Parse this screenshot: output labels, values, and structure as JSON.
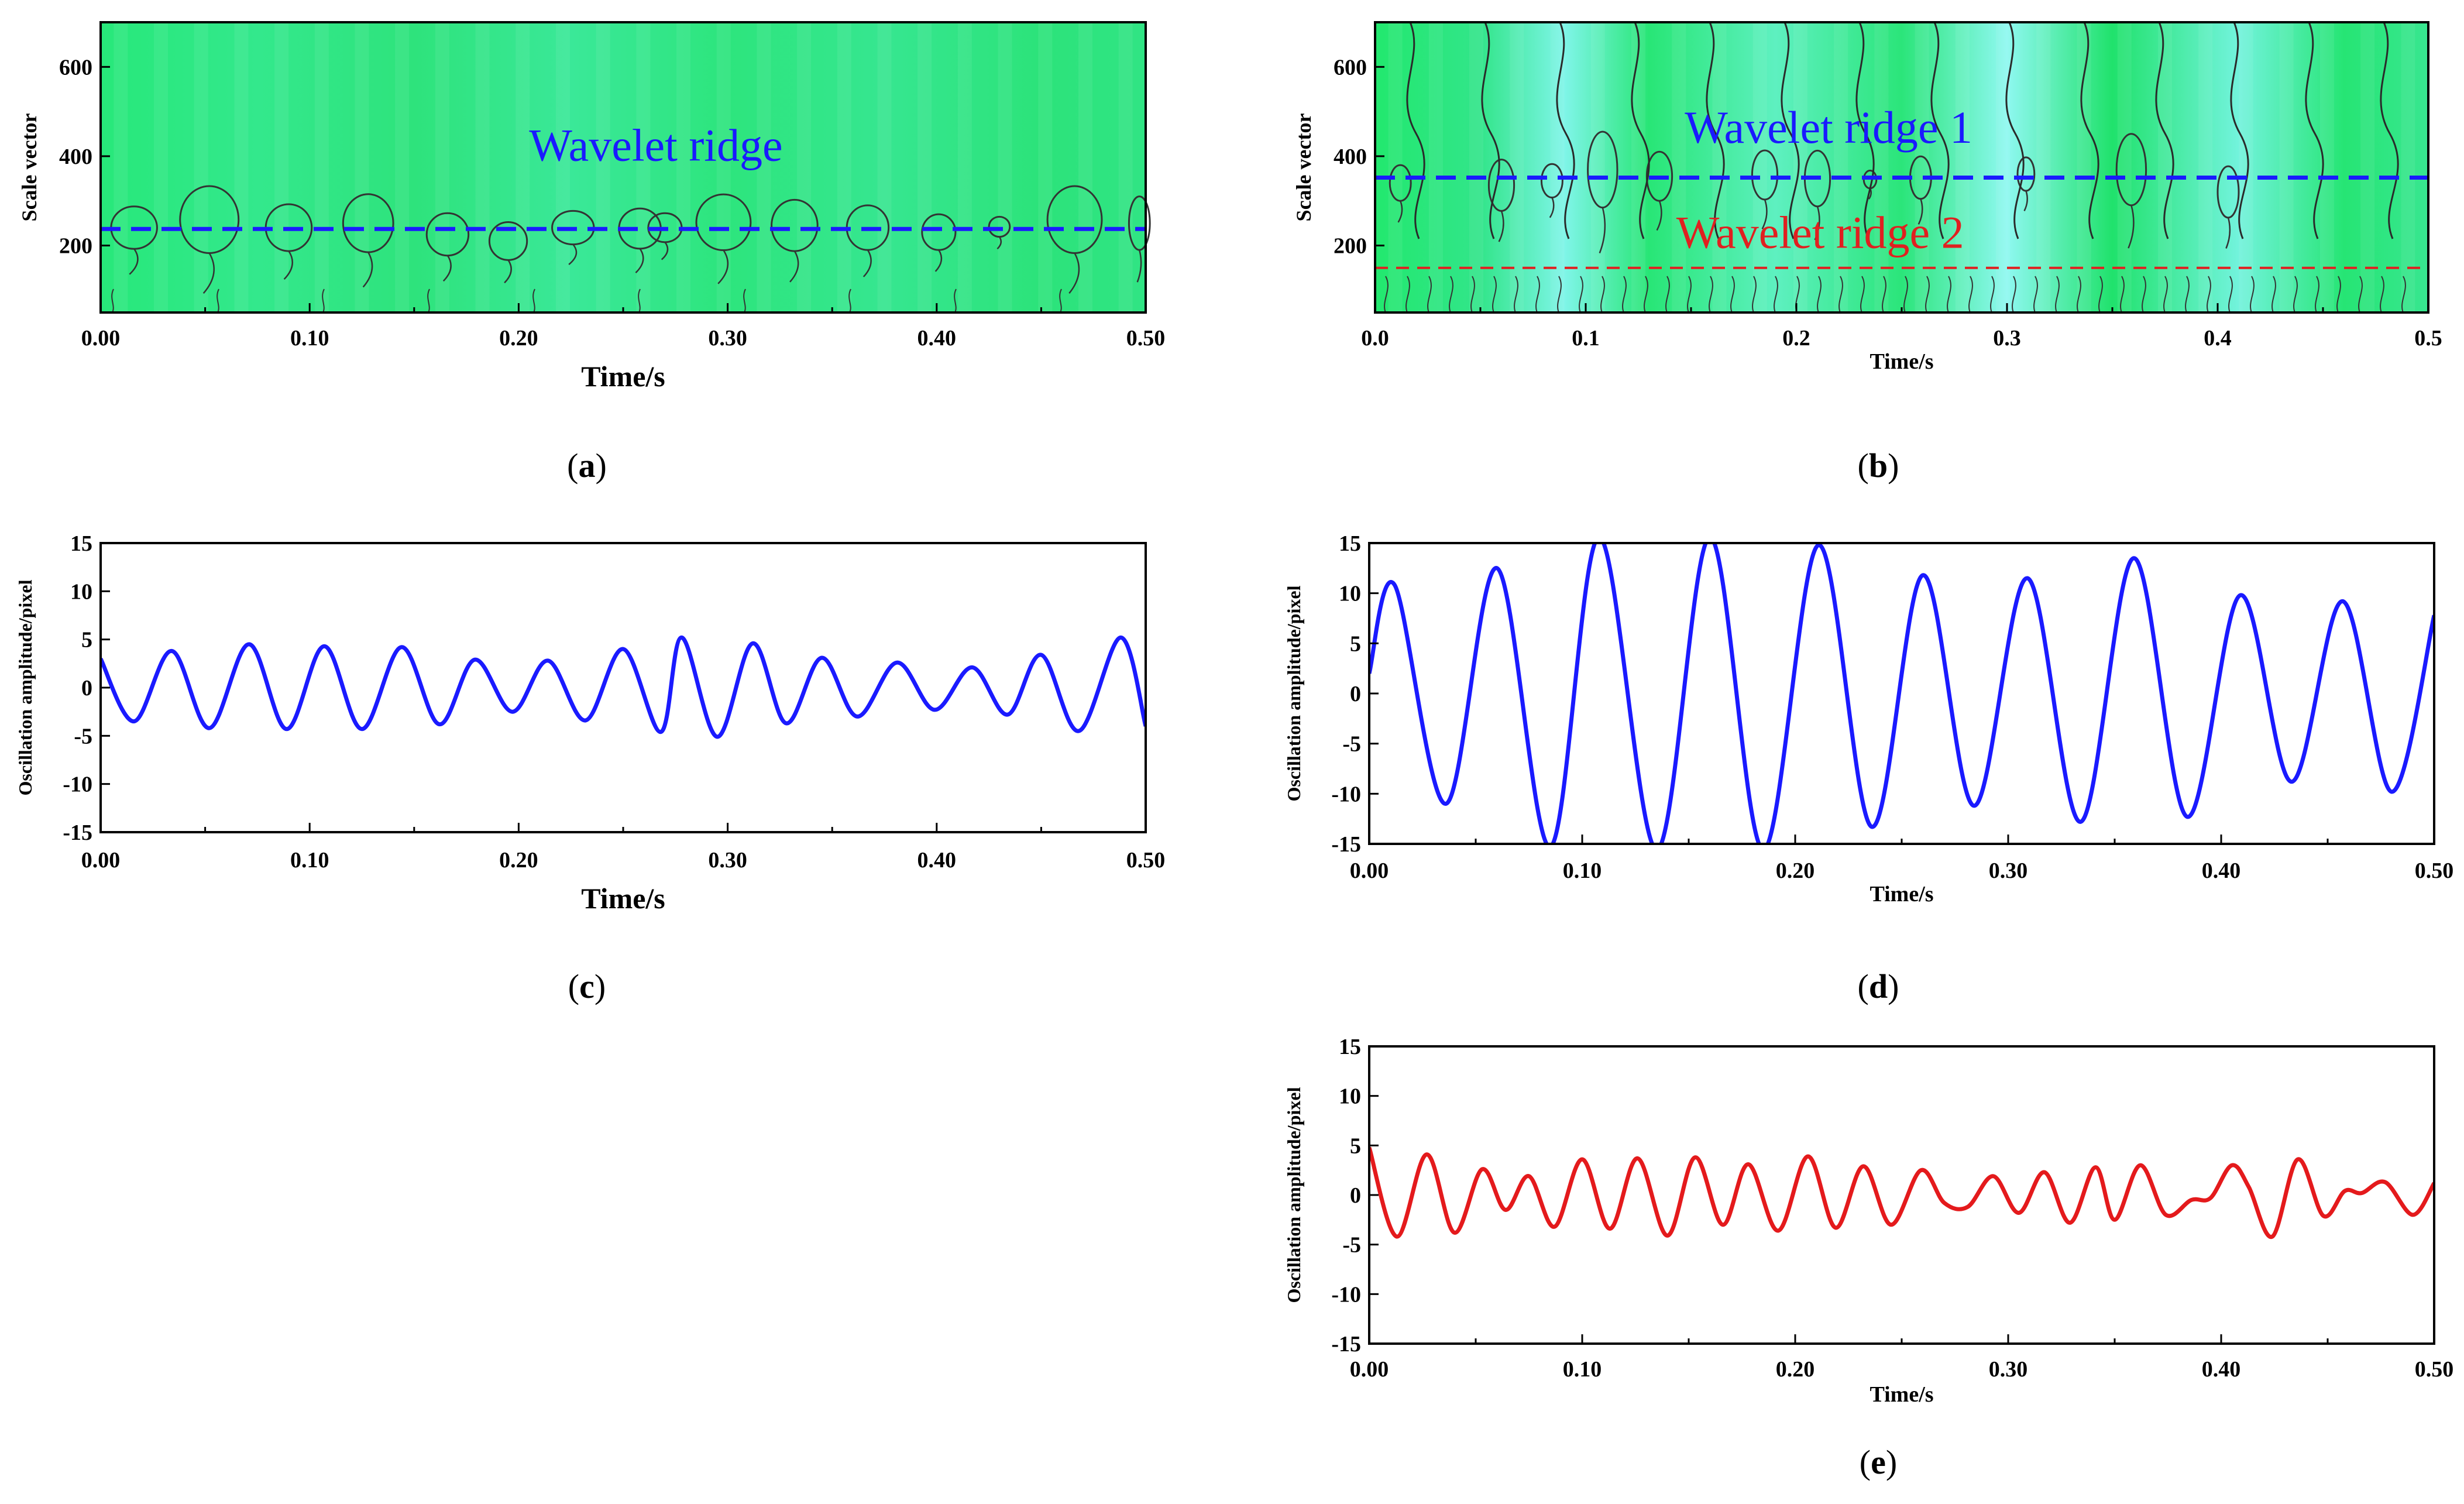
{
  "figure": {
    "background": "#ffffff"
  },
  "chart_data": [
    {
      "id": "a",
      "type": "heatmap",
      "panel_label": "a",
      "xlabel": "Time/s",
      "ylabel": "Scale vector",
      "xlim": [
        0.0,
        0.5
      ],
      "ylim": [
        50,
        700
      ],
      "xticks": [
        "0.00",
        "0.10",
        "0.20",
        "0.30",
        "0.40",
        "0.50"
      ],
      "yticks": [
        "200",
        "400",
        "600"
      ],
      "colormap": "green-cyan",
      "ridges": [
        {
          "name": "Wavelet ridge",
          "scale": 237,
          "color": "#1a1aff",
          "dash": "dashed"
        }
      ],
      "annotations": [
        {
          "text": "Wavelet ridge",
          "x": 0.205,
          "y": 390,
          "color": "#1a1aff"
        }
      ],
      "contours": [
        {
          "x": 0.016,
          "y": 240,
          "w": 0.011,
          "h": 95
        },
        {
          "x": 0.052,
          "y": 258,
          "w": 0.014,
          "h": 150
        },
        {
          "x": 0.09,
          "y": 240,
          "w": 0.011,
          "h": 105
        },
        {
          "x": 0.128,
          "y": 250,
          "w": 0.012,
          "h": 130
        },
        {
          "x": 0.166,
          "y": 225,
          "w": 0.01,
          "h": 95
        },
        {
          "x": 0.195,
          "y": 210,
          "w": 0.009,
          "h": 85
        },
        {
          "x": 0.226,
          "y": 240,
          "w": 0.01,
          "h": 75
        },
        {
          "x": 0.258,
          "y": 238,
          "w": 0.01,
          "h": 90
        },
        {
          "x": 0.27,
          "y": 240,
          "w": 0.008,
          "h": 65
        },
        {
          "x": 0.298,
          "y": 252,
          "w": 0.013,
          "h": 125
        },
        {
          "x": 0.332,
          "y": 245,
          "w": 0.011,
          "h": 115
        },
        {
          "x": 0.367,
          "y": 240,
          "w": 0.01,
          "h": 100
        },
        {
          "x": 0.401,
          "y": 230,
          "w": 0.008,
          "h": 80
        },
        {
          "x": 0.43,
          "y": 242,
          "w": 0.005,
          "h": 45
        },
        {
          "x": 0.466,
          "y": 258,
          "w": 0.013,
          "h": 150
        },
        {
          "x": 0.497,
          "y": 250,
          "w": 0.005,
          "h": 120
        }
      ]
    },
    {
      "id": "b",
      "type": "heatmap",
      "panel_label": "b",
      "xlabel": "Time/s",
      "ylabel": "Scale vector",
      "xlim": [
        0.0,
        0.5
      ],
      "ylim": [
        50,
        700
      ],
      "xticks": [
        "0.0",
        "0.1",
        "0.2",
        "0.3",
        "0.4",
        "0.5"
      ],
      "yticks": [
        "200",
        "400",
        "600"
      ],
      "colormap": "green-cyan",
      "ridges": [
        {
          "name": "Wavelet ridge 1",
          "scale": 352,
          "color": "#1a1aff",
          "dash": "dashed"
        },
        {
          "name": "Wavelet ridge 2",
          "scale": 150,
          "color": "#e02020",
          "dash": "dashed"
        }
      ],
      "annotations": [
        {
          "text": "Wavelet ridge 1",
          "x": 0.147,
          "y": 430,
          "color": "#1a1aff"
        },
        {
          "text": "Wavelet ridge 2",
          "x": 0.143,
          "y": 195,
          "color": "#e02020"
        }
      ],
      "contours": [
        {
          "x": 0.012,
          "y": 340,
          "w": 0.005,
          "h": 80
        },
        {
          "x": 0.06,
          "y": 335,
          "w": 0.006,
          "h": 115
        },
        {
          "x": 0.084,
          "y": 345,
          "w": 0.005,
          "h": 75
        },
        {
          "x": 0.108,
          "y": 370,
          "w": 0.007,
          "h": 170
        },
        {
          "x": 0.135,
          "y": 355,
          "w": 0.006,
          "h": 110
        },
        {
          "x": 0.185,
          "y": 358,
          "w": 0.006,
          "h": 110
        },
        {
          "x": 0.21,
          "y": 350,
          "w": 0.006,
          "h": 125
        },
        {
          "x": 0.235,
          "y": 348,
          "w": 0.003,
          "h": 40
        },
        {
          "x": 0.259,
          "y": 352,
          "w": 0.005,
          "h": 95
        },
        {
          "x": 0.309,
          "y": 360,
          "w": 0.004,
          "h": 75
        },
        {
          "x": 0.359,
          "y": 370,
          "w": 0.007,
          "h": 160
        },
        {
          "x": 0.405,
          "y": 320,
          "w": 0.005,
          "h": 115
        }
      ]
    },
    {
      "id": "c",
      "type": "line",
      "panel_label": "c",
      "xlabel": "Time/s",
      "ylabel": "Oscillation amplitude/pixel",
      "xlim": [
        0.0,
        0.5
      ],
      "ylim": [
        -15,
        15
      ],
      "xticks": [
        "0.00",
        "0.10",
        "0.20",
        "0.30",
        "0.40",
        "0.50"
      ],
      "yticks": [
        "-15",
        "-10",
        "-5",
        "0",
        "5",
        "10",
        "15"
      ],
      "series": [
        {
          "name": "Oscillation amplitude",
          "color": "#1a1aff",
          "x": [
            0.0,
            0.016,
            0.034,
            0.052,
            0.071,
            0.089,
            0.107,
            0.125,
            0.144,
            0.162,
            0.179,
            0.197,
            0.214,
            0.232,
            0.25,
            0.268,
            0.278,
            0.295,
            0.312,
            0.328,
            0.345,
            0.362,
            0.381,
            0.399,
            0.417,
            0.434,
            0.45,
            0.468,
            0.488,
            0.5
          ],
          "y": [
            3.0,
            -3.5,
            3.8,
            -4.2,
            4.5,
            -4.3,
            4.3,
            -4.3,
            4.2,
            -3.8,
            2.9,
            -2.5,
            2.8,
            -3.4,
            4.0,
            -4.6,
            5.2,
            -5.1,
            4.6,
            -3.7,
            3.1,
            -3.0,
            2.6,
            -2.3,
            2.1,
            -2.8,
            3.4,
            -4.5,
            5.2,
            -4.0
          ]
        }
      ]
    },
    {
      "id": "d",
      "type": "line",
      "panel_label": "d",
      "xlabel": "Time/s",
      "ylabel": "Oscillation amplitude/pixel",
      "xlim": [
        0.0,
        0.5
      ],
      "ylim": [
        -15,
        15
      ],
      "xticks": [
        "0.00",
        "0.10",
        "0.20",
        "0.30",
        "0.40",
        "0.50"
      ],
      "yticks": [
        "-15",
        "-10",
        "-5",
        "0",
        "5",
        "10",
        "15"
      ],
      "series": [
        {
          "name": "Oscillation amplitude",
          "color": "#1a1aff",
          "x": [
            0.0,
            0.012,
            0.036,
            0.06,
            0.085,
            0.108,
            0.135,
            0.16,
            0.185,
            0.211,
            0.236,
            0.26,
            0.284,
            0.309,
            0.334,
            0.359,
            0.384,
            0.409,
            0.433,
            0.457,
            0.48,
            0.5
          ],
          "y": [
            2.0,
            10.8,
            -11.0,
            12.5,
            -15.3,
            15.6,
            -15.6,
            15.8,
            -15.7,
            14.8,
            -13.3,
            11.8,
            -11.2,
            11.5,
            -12.8,
            13.5,
            -12.3,
            9.8,
            -8.8,
            9.2,
            -9.8,
            7.8
          ]
        }
      ]
    },
    {
      "id": "e",
      "type": "line",
      "panel_label": "e",
      "xlabel": "Time/s",
      "ylabel": "Oscillation amplitude/pixel",
      "xlim": [
        0.0,
        0.5
      ],
      "ylim": [
        -15,
        15
      ],
      "xticks": [
        "0.00",
        "0.10",
        "0.20",
        "0.30",
        "0.40",
        "0.50"
      ],
      "yticks": [
        "-15",
        "-10",
        "-5",
        "0",
        "5",
        "10",
        "15"
      ],
      "series": [
        {
          "name": "Oscillation amplitude",
          "color": "#e41a1c",
          "x": [
            0.0,
            0.013,
            0.027,
            0.04,
            0.053,
            0.064,
            0.075,
            0.087,
            0.1,
            0.113,
            0.126,
            0.14,
            0.153,
            0.166,
            0.178,
            0.192,
            0.206,
            0.219,
            0.232,
            0.245,
            0.259,
            0.27,
            0.281,
            0.293,
            0.305,
            0.317,
            0.329,
            0.341,
            0.35,
            0.362,
            0.374,
            0.386,
            0.395,
            0.405,
            0.413,
            0.424,
            0.436,
            0.448,
            0.458,
            0.466,
            0.477,
            0.49,
            0.5
          ],
          "y": [
            4.8,
            -4.2,
            4.1,
            -3.8,
            2.6,
            -1.5,
            1.9,
            -3.2,
            3.6,
            -3.4,
            3.7,
            -4.1,
            3.8,
            -3.0,
            3.1,
            -3.6,
            3.9,
            -3.3,
            2.9,
            -3.0,
            2.5,
            -0.8,
            -1.2,
            1.9,
            -1.8,
            2.3,
            -2.8,
            2.8,
            -2.5,
            3.0,
            -2.0,
            -0.5,
            -0.3,
            3.0,
            0.8,
            -4.2,
            3.6,
            -2.1,
            0.4,
            0.2,
            1.3,
            -2.0,
            1.2
          ]
        }
      ]
    }
  ]
}
